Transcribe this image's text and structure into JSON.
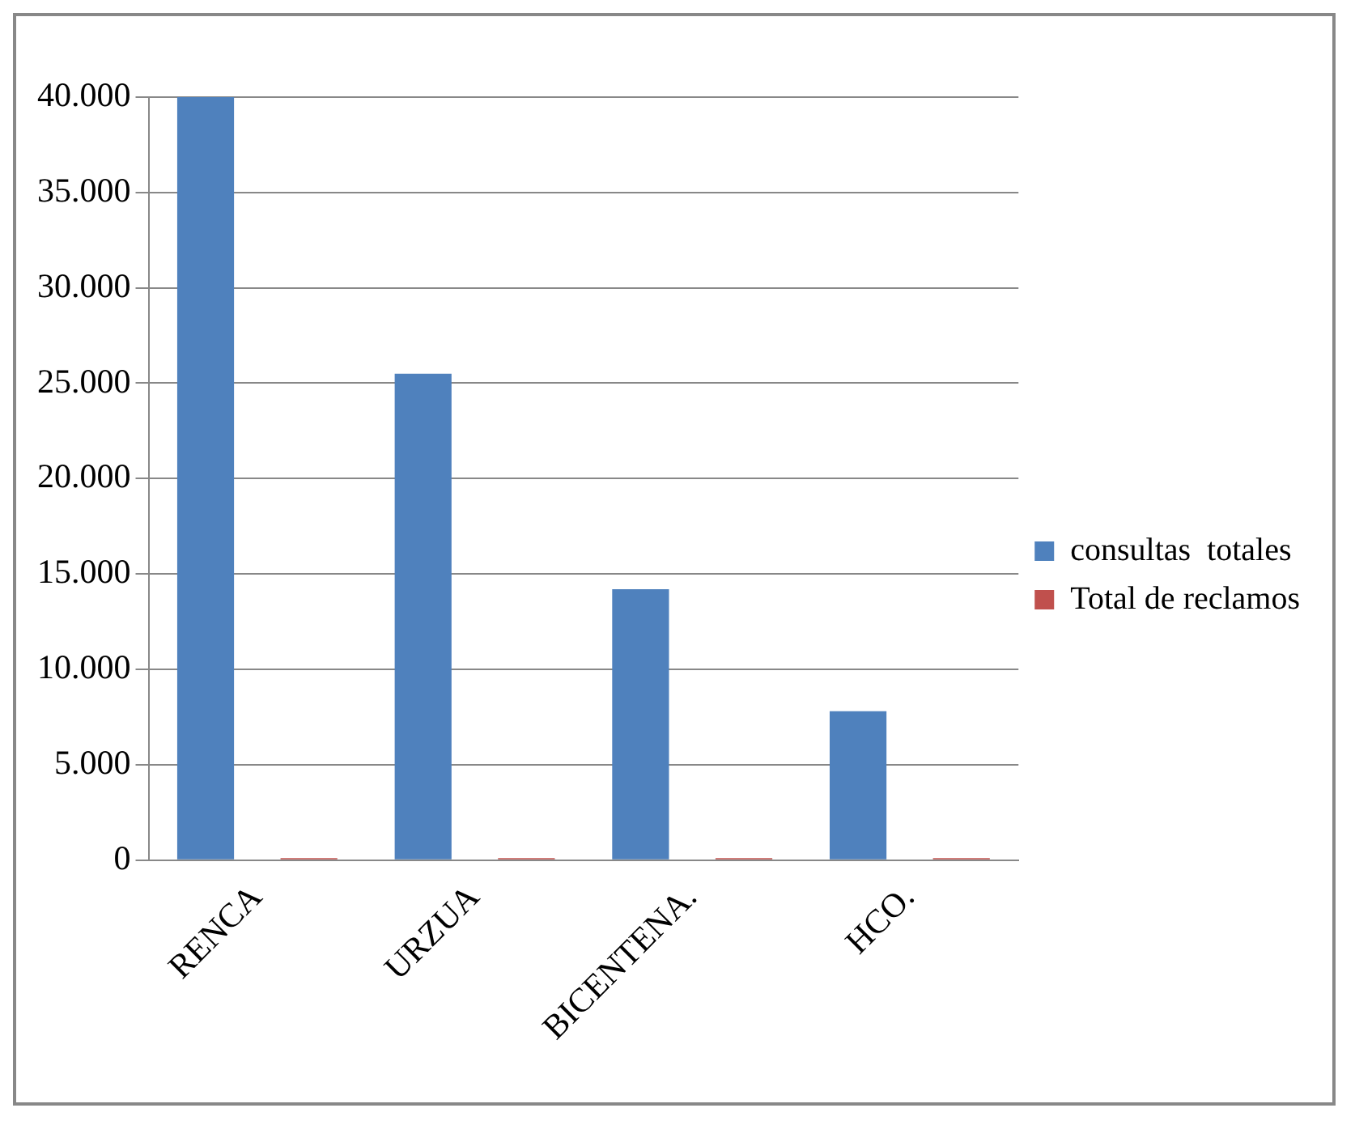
{
  "chart_data": {
    "type": "bar",
    "categories": [
      "RENCA",
      "URZUA",
      "BICENTENA.",
      "HCO."
    ],
    "series": [
      {
        "name": "consultas  totales",
        "color": "#4f81bd",
        "values": [
          40000,
          25500,
          14200,
          7800
        ]
      },
      {
        "name": "Total de reclamos",
        "color": "#c0504d",
        "values": [
          100,
          100,
          100,
          100
        ]
      }
    ],
    "ylim": [
      0,
      40000
    ],
    "yticks": [
      {
        "value": 0,
        "label": "0"
      },
      {
        "value": 5000,
        "label": "5.000"
      },
      {
        "value": 10000,
        "label": "10.000"
      },
      {
        "value": 15000,
        "label": "15.000"
      },
      {
        "value": 20000,
        "label": "20.000"
      },
      {
        "value": 25000,
        "label": "25.000"
      },
      {
        "value": 30000,
        "label": "30.000"
      },
      {
        "value": 35000,
        "label": "35.000"
      },
      {
        "value": 40000,
        "label": "40.000"
      }
    ],
    "grid": "y",
    "legend": "right"
  }
}
